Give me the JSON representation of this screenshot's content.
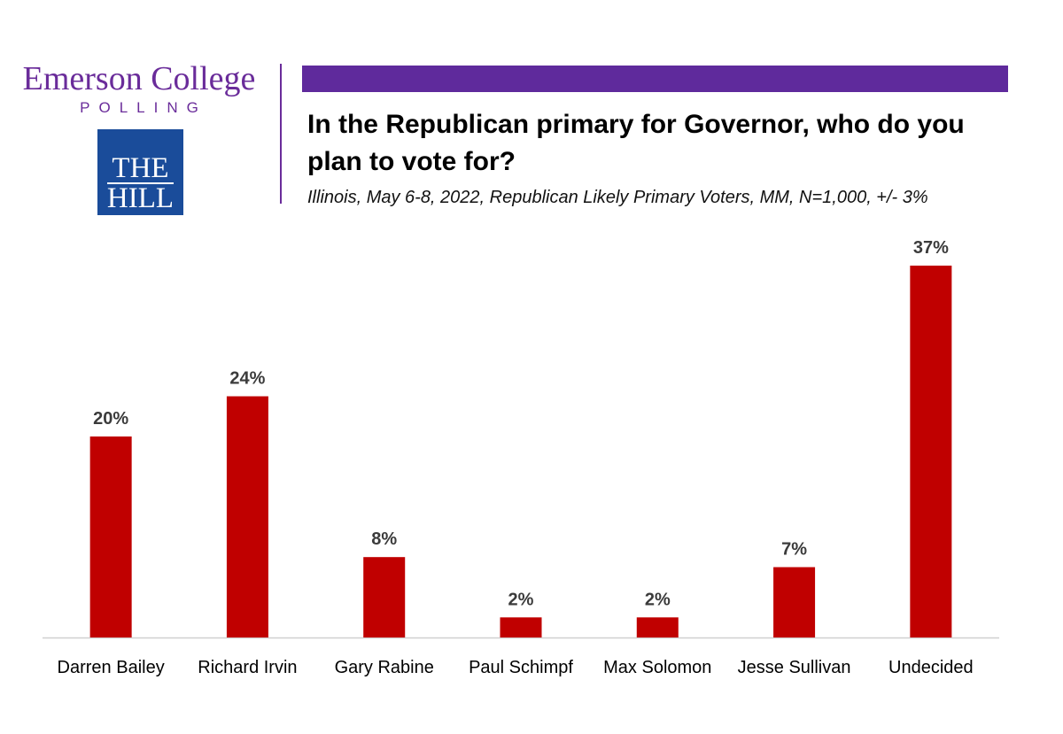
{
  "branding": {
    "emerson_name": "Emerson College",
    "emerson_sub": "POLLING",
    "hill_line1": "THE",
    "hill_line2": "HILL"
  },
  "colors": {
    "bar": "#c00000",
    "accent_bar": "#5f2a9c",
    "emerson_purple": "#6a2c9a",
    "hill_blue": "#1a4c9a"
  },
  "chart_data": {
    "type": "bar",
    "title": "In the Republican primary for Governor, who do you plan to vote for?",
    "subtitle": "Illinois, May 6-8, 2022, Republican Likely Primary Voters, MM, N=1,000, +/- 3%",
    "categories": [
      "Darren Bailey",
      "Richard Irvin",
      "Gary Rabine",
      "Paul Schimpf",
      "Max Solomon",
      "Jesse Sullivan",
      "Undecided"
    ],
    "values": [
      20,
      24,
      8,
      2,
      2,
      7,
      37
    ],
    "value_labels": [
      "20%",
      "24%",
      "8%",
      "2%",
      "2%",
      "7%",
      "37%"
    ],
    "xlabel": "",
    "ylabel": "",
    "ylim": [
      0,
      37
    ],
    "grid": false,
    "legend": "none"
  }
}
